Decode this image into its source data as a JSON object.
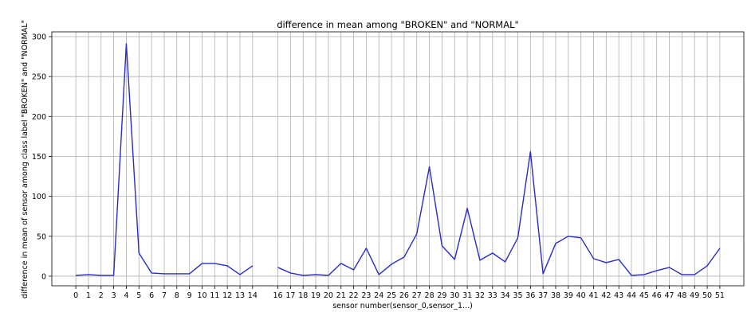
{
  "chart_data": {
    "type": "line",
    "title": "difference in mean among \"BROKEN\" and \"NORMAL\"",
    "xlabel": "sensor number(sensor_0,sensor_1...)",
    "ylabel": "difference in mean of sensor among class label \"BROKEN\" and \"NORMAL\"",
    "x": [
      0,
      1,
      2,
      3,
      4,
      5,
      6,
      7,
      8,
      9,
      10,
      11,
      12,
      13,
      14,
      15,
      16,
      17,
      18,
      19,
      20,
      21,
      22,
      23,
      24,
      25,
      26,
      27,
      28,
      29,
      30,
      31,
      32,
      33,
      34,
      35,
      36,
      37,
      38,
      39,
      40,
      41,
      42,
      43,
      44,
      45,
      46,
      47,
      48,
      49,
      50,
      51
    ],
    "xticks": [
      "0",
      "1",
      "2",
      "3",
      "4",
      "5",
      "6",
      "7",
      "8",
      "9",
      "10",
      "11",
      "12",
      "13",
      "14",
      "16",
      "17",
      "18",
      "19",
      "20",
      "21",
      "22",
      "23",
      "24",
      "25",
      "26",
      "27",
      "28",
      "29",
      "30",
      "31",
      "32",
      "33",
      "34",
      "35",
      "36",
      "37",
      "38",
      "39",
      "40",
      "41",
      "42",
      "43",
      "44",
      "45",
      "46",
      "47",
      "48",
      "49",
      "50",
      "51"
    ],
    "series": [
      {
        "color": "#2b2bc8",
        "values": [
          1,
          2,
          1,
          1,
          291,
          29,
          4,
          3,
          3,
          3,
          16,
          16,
          13,
          2,
          13,
          null,
          11,
          4,
          1,
          2,
          1,
          16,
          8,
          35,
          2,
          15,
          24,
          53,
          137,
          38,
          21,
          85,
          20,
          29,
          18,
          48,
          156,
          3,
          41,
          50,
          48,
          22,
          17,
          21,
          1,
          2,
          7,
          11,
          2,
          2,
          13,
          35
        ]
      }
    ],
    "yticks": [
      0,
      50,
      100,
      150,
      200,
      250,
      300
    ],
    "ylim": [
      -12,
      306
    ],
    "xlim": [
      -1.9,
      52.9
    ],
    "grid": true,
    "legend": "none"
  }
}
